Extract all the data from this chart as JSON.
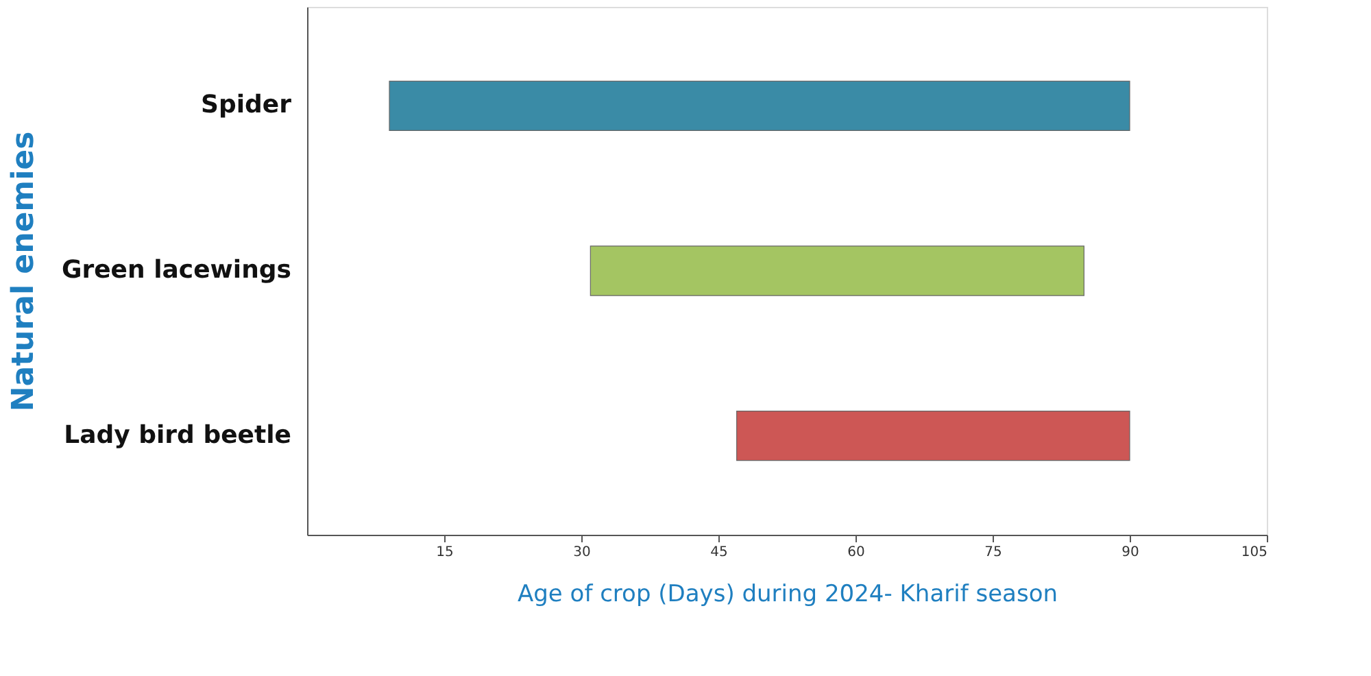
{
  "chart_data": {
    "type": "bar",
    "orientation": "horizontal",
    "categories": [
      "Spider",
      "Green lacewings",
      "Lady bird beetle"
    ],
    "base": [
      9,
      31,
      47
    ],
    "values": [
      81,
      54,
      43
    ],
    "colors": [
      "#3a8ba6",
      "#a4c562",
      "#cd5755"
    ],
    "xlabel": "Age of crop (Days) during 2024- Kharif season",
    "ylabel": "Natural enemies",
    "xlim": [
      0,
      105
    ],
    "xticks": [
      15,
      30,
      45,
      60,
      75,
      90,
      105
    ],
    "grid": false,
    "legend": false
  }
}
